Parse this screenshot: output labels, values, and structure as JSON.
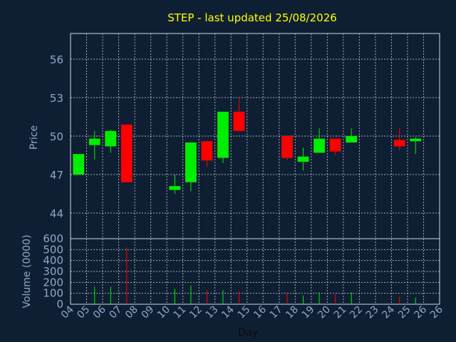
{
  "chart_data": [
    {
      "type": "candlestick",
      "title": "STEP - last updated 25/08/2026",
      "ylabel": "Price",
      "ylim": [
        42,
        58
      ],
      "yticks": [
        44,
        47,
        50,
        53,
        56
      ],
      "grid": true,
      "colors": {
        "up": "#00ee00",
        "down": "#ff0000",
        "wick_up": "#00ee00",
        "wick_down": "#ff0000"
      },
      "candles": [
        {
          "day": "04",
          "open": 47.0,
          "high": 48.6,
          "low": 47.0,
          "close": 48.6
        },
        {
          "day": "05",
          "open": 49.3,
          "high": 50.4,
          "low": 48.2,
          "close": 49.8
        },
        {
          "day": "06",
          "open": 49.2,
          "high": 50.5,
          "low": 48.7,
          "close": 50.4
        },
        {
          "day": "07",
          "open": 50.9,
          "high": 50.9,
          "low": 46.4,
          "close": 46.4
        },
        {
          "day": "10",
          "open": 45.8,
          "high": 47.0,
          "low": 45.5,
          "close": 46.1
        },
        {
          "day": "11",
          "open": 46.4,
          "high": 49.5,
          "low": 45.7,
          "close": 49.5
        },
        {
          "day": "12",
          "open": 49.6,
          "high": 49.6,
          "low": 47.6,
          "close": 48.1
        },
        {
          "day": "13",
          "open": 48.3,
          "high": 51.9,
          "low": 47.9,
          "close": 51.9
        },
        {
          "day": "14",
          "open": 51.9,
          "high": 53.0,
          "low": 50.4,
          "close": 50.4
        },
        {
          "day": "17",
          "open": 50.0,
          "high": 50.0,
          "low": 48.1,
          "close": 48.3
        },
        {
          "day": "18",
          "open": 48.0,
          "high": 49.1,
          "low": 47.3,
          "close": 48.4
        },
        {
          "day": "19",
          "open": 48.7,
          "high": 50.6,
          "low": 48.7,
          "close": 49.8
        },
        {
          "day": "20",
          "open": 49.8,
          "high": 49.8,
          "low": 48.5,
          "close": 48.8
        },
        {
          "day": "21",
          "open": 49.5,
          "high": 50.6,
          "low": 49.5,
          "close": 50.0
        },
        {
          "day": "24",
          "open": 49.7,
          "high": 50.6,
          "low": 48.9,
          "close": 49.2
        },
        {
          "day": "25",
          "open": 49.6,
          "high": 49.9,
          "low": 48.6,
          "close": 49.8
        }
      ]
    },
    {
      "type": "bar",
      "ylabel": "Volume (0000)",
      "xlabel": "Day",
      "ylim": [
        0,
        600
      ],
      "yticks": [
        0,
        100,
        200,
        300,
        400,
        500,
        600
      ],
      "grid": true,
      "categories": [
        "04",
        "05",
        "06",
        "07",
        "08",
        "09",
        "10",
        "11",
        "12",
        "13",
        "14",
        "15",
        "16",
        "17",
        "18",
        "19",
        "20",
        "21",
        "22",
        "23",
        "24",
        "25",
        "26"
      ],
      "volumes": [
        {
          "day": "05",
          "value": 160,
          "dir": "up"
        },
        {
          "day": "06",
          "value": 160,
          "dir": "up"
        },
        {
          "day": "07",
          "value": 520,
          "dir": "down"
        },
        {
          "day": "10",
          "value": 140,
          "dir": "up"
        },
        {
          "day": "11",
          "value": 170,
          "dir": "up"
        },
        {
          "day": "12",
          "value": 130,
          "dir": "down"
        },
        {
          "day": "13",
          "value": 130,
          "dir": "up"
        },
        {
          "day": "14",
          "value": 120,
          "dir": "down"
        },
        {
          "day": "17",
          "value": 110,
          "dir": "down"
        },
        {
          "day": "18",
          "value": 80,
          "dir": "up"
        },
        {
          "day": "19",
          "value": 110,
          "dir": "up"
        },
        {
          "day": "20",
          "value": 90,
          "dir": "down"
        },
        {
          "day": "21",
          "value": 110,
          "dir": "up"
        },
        {
          "day": "24",
          "value": 70,
          "dir": "down"
        },
        {
          "day": "25",
          "value": 60,
          "dir": "up"
        }
      ]
    }
  ]
}
